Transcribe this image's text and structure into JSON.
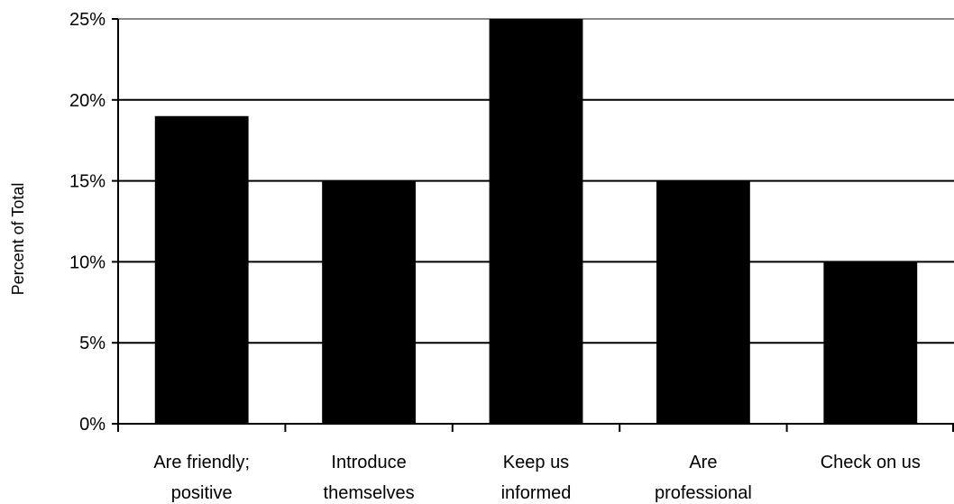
{
  "chart_data": {
    "type": "bar",
    "title": "",
    "xlabel": "",
    "ylabel": "Percent of Total",
    "ylim": [
      0,
      25
    ],
    "grid": true,
    "legend": "none",
    "yticks": [
      "0%",
      "5%",
      "10%",
      "15%",
      "20%",
      "25%"
    ],
    "categories": [
      [
        "Are friendly;",
        "positive"
      ],
      [
        "Introduce",
        "themselves"
      ],
      [
        "Keep us",
        "informed"
      ],
      [
        "Are",
        "professional"
      ],
      [
        "Check on us"
      ]
    ],
    "values": [
      19,
      15,
      25,
      15,
      10
    ],
    "bar_color": "#000000"
  }
}
